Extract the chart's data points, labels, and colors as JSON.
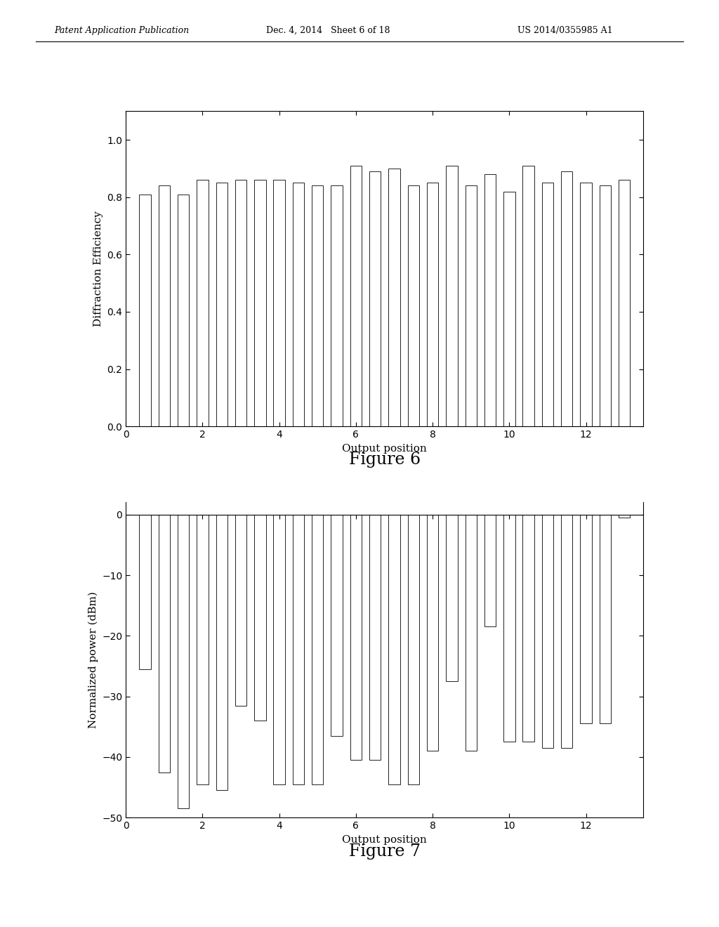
{
  "fig6_values": [
    0.81,
    0.84,
    0.81,
    0.86,
    0.85,
    0.86,
    0.86,
    0.86,
    0.85,
    0.84,
    0.84,
    0.91,
    0.89,
    0.9,
    0.84,
    0.85,
    0.91,
    0.84,
    0.88,
    0.82,
    0.91,
    0.85,
    0.89,
    0.85,
    0.84,
    0.86
  ],
  "fig6_ylabel": "Diffraction Efficiency",
  "fig6_xlabel": "Output position",
  "fig6_title": "Figure 6",
  "fig6_ylim": [
    0.0,
    1.1
  ],
  "fig6_yticks": [
    0.0,
    0.2,
    0.4,
    0.6,
    0.8,
    1.0
  ],
  "fig6_xlim": [
    0,
    13.5
  ],
  "fig6_xticks": [
    0,
    2,
    4,
    6,
    8,
    10,
    12
  ],
  "fig7_values": [
    -25.5,
    -42.5,
    -48.5,
    -44.5,
    -45.5,
    -31.5,
    -34.0,
    -44.5,
    -44.5,
    -44.5,
    -36.5,
    -40.5,
    -40.5,
    -44.5,
    -44.5,
    -39.0,
    -27.5,
    -39.0,
    -18.5,
    -37.5,
    -37.5,
    -38.5,
    -38.5,
    -34.5,
    -34.5,
    -0.5
  ],
  "fig7_ylabel": "Normalized power (dBm)",
  "fig7_xlabel": "Output position",
  "fig7_title": "Figure 7",
  "fig7_ylim": [
    -50,
    2
  ],
  "fig7_yticks": [
    0,
    -10,
    -20,
    -30,
    -40,
    -50
  ],
  "fig7_xlim": [
    0,
    13.5
  ],
  "fig7_xticks": [
    0,
    2,
    4,
    6,
    8,
    10,
    12
  ],
  "bar_color": "white",
  "bar_edgecolor": "#222222",
  "background_color": "white",
  "header_text1": "Patent Application Publication",
  "header_text2": "Dec. 4, 2014   Sheet 6 of 18",
  "header_text3": "US 2014/0355985 A1",
  "header_fontsize": 9
}
